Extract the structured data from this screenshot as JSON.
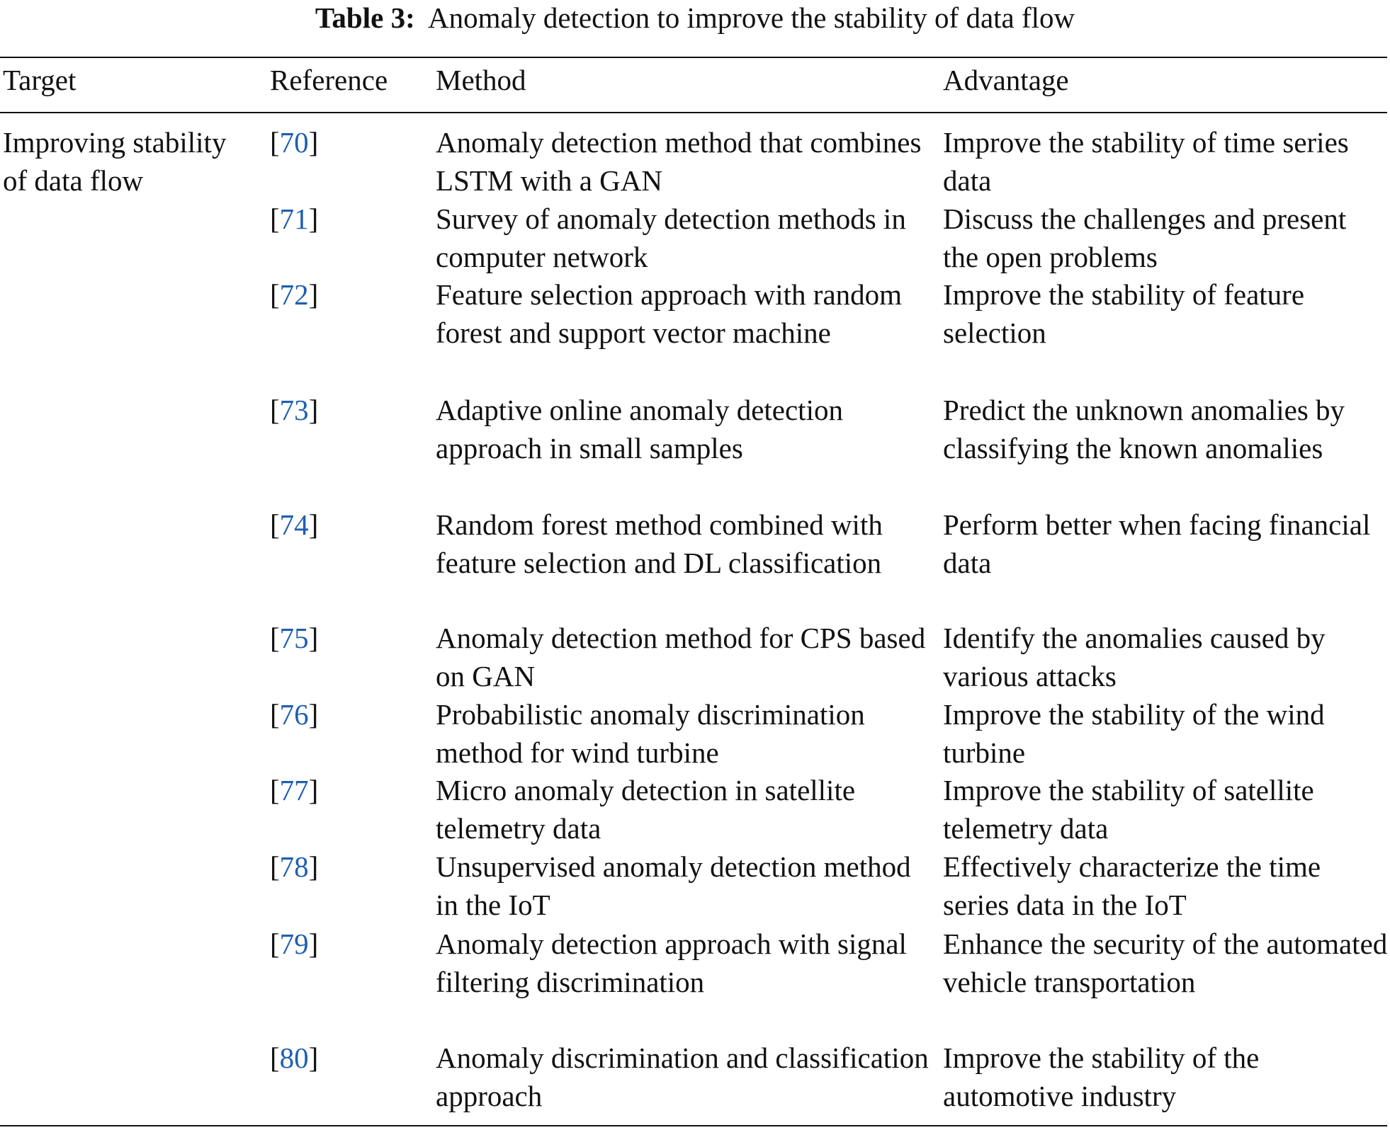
{
  "caption": {
    "label": "Table 3:",
    "title": "Anomaly detection to improve the stability of data flow"
  },
  "table": {
    "header": [
      "Target",
      "Reference",
      "Method",
      "Advantage"
    ],
    "target": "Improving stability of data flow",
    "rows": [
      [
        "[70]",
        "Anomaly detection method that combines LSTM with a GAN",
        "Improve the stability of time series data"
      ],
      [
        "[71]",
        "Survey of anomaly detection methods in computer network",
        "Discuss the challenges and present the open problems"
      ],
      [
        "[72]",
        "Feature selection approach with random forest and support vector machine",
        "Improve the stability of feature selection"
      ],
      [
        "[73]",
        "Adaptive online anomaly detection approach in small samples",
        "Predict the unknown anomalies by classifying the known anomalies"
      ],
      [
        "[74]",
        "Random forest method combined with feature selection and DL classification",
        "Perform better when facing financial data"
      ],
      [
        "[75]",
        "Anomaly detection method for CPS based on GAN",
        "Identify the anomalies caused by various attacks"
      ],
      [
        "[76]",
        "Probabilistic anomaly discrimination method for wind turbine",
        "Improve the stability of the wind turbine"
      ],
      [
        "[77]",
        "Micro anomaly detection in satellite telemetry data",
        "Improve the stability of satellite telemetry data"
      ],
      [
        "[78]",
        "Unsupervised anomaly detection method in the IoT",
        "Effectively characterize the time series data in the IoT"
      ],
      [
        "[79]",
        "Anomaly detection approach with signal filtering discrimination",
        "Enhance the security of the automated vehicle transportation"
      ],
      [
        "[80]",
        "Anomaly discrimination and classification approach",
        "Improve the stability of the automotive industry"
      ]
    ]
  }
}
